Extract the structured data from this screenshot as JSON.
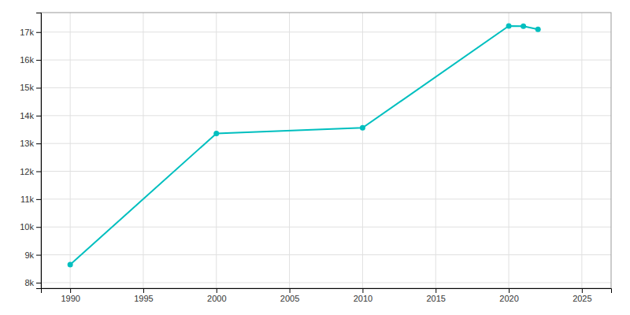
{
  "chart_data": {
    "type": "line",
    "x": [
      1990,
      2000,
      2010,
      2020,
      2021,
      2022
    ],
    "values": [
      8650,
      13360,
      13560,
      17220,
      17210,
      17100
    ],
    "color": "#00BFBF",
    "marker": "circle",
    "xlim": [
      1988,
      2027
    ],
    "ylim": [
      7800,
      17700
    ],
    "xticks": [
      1990,
      1995,
      2000,
      2005,
      2010,
      2015,
      2020,
      2025
    ],
    "yticks": [
      {
        "value": 8000,
        "label": "8k"
      },
      {
        "value": 9000,
        "label": "9k"
      },
      {
        "value": 10000,
        "label": "10k"
      },
      {
        "value": 11000,
        "label": "11k"
      },
      {
        "value": 12000,
        "label": "12k"
      },
      {
        "value": 13000,
        "label": "13k"
      },
      {
        "value": 14000,
        "label": "14k"
      },
      {
        "value": 15000,
        "label": "15k"
      },
      {
        "value": 16000,
        "label": "16k"
      },
      {
        "value": 17000,
        "label": "17k"
      }
    ],
    "grid": true
  }
}
